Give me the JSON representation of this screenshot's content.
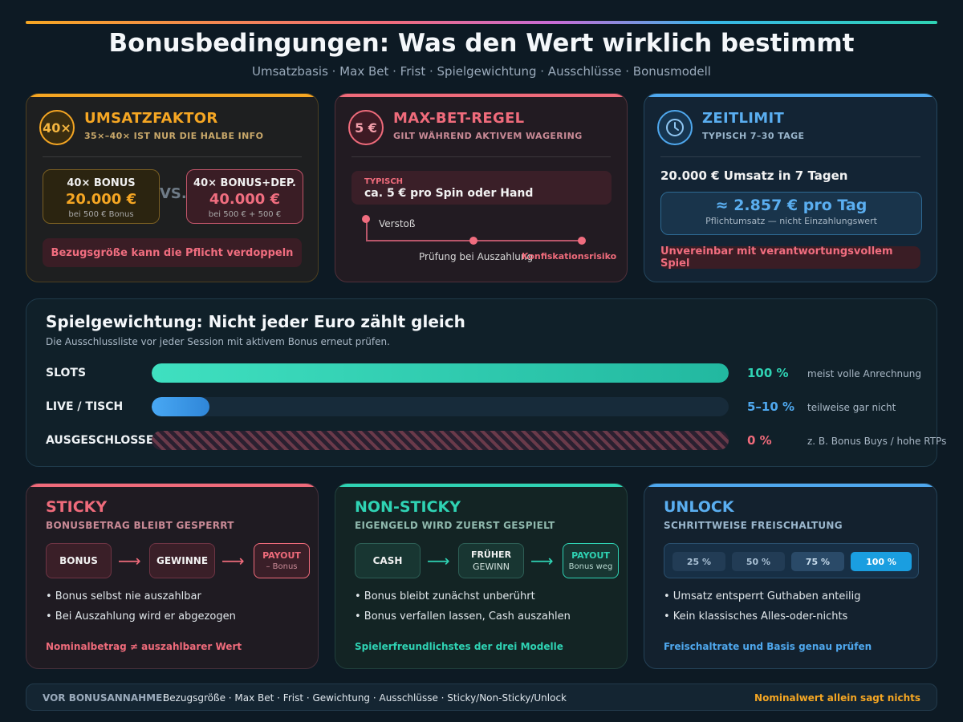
{
  "header": {
    "title": "Bonusbedingungen: Was den Wert wirklich bestimmt",
    "subtitle": "Umsatzbasis · Max Bet · Frist · Spielgewichtung · Ausschlüsse · Bonusmodell"
  },
  "colors": {
    "orange": "#f5a623",
    "red": "#ef6b7b",
    "blue": "#4fa8ee",
    "teal": "#2fd3b4"
  },
  "umsatz": {
    "badge": "40×",
    "title": "UMSATZFAKTOR",
    "subtitle": "35×–40× IST NUR DIE HALBE INFO",
    "box1": {
      "label": "40× BONUS",
      "amount": "20.000 €",
      "note": "bei 500 € Bonus"
    },
    "vs": "VS.",
    "box2": {
      "label": "40× BONUS+DEP.",
      "amount": "40.000 €",
      "note": "bei 500 € + 500 €"
    },
    "warning": "Bezugsgröße kann die Pflicht verdoppeln"
  },
  "maxbet": {
    "badge": "5 €",
    "title": "MAX-BET-REGEL",
    "subtitle": "GILT WÄHREND AKTIVEM WAGERING",
    "typisch_label": "TYPISCH",
    "typisch_value": "ca. 5 € pro Spin oder Hand",
    "timeline": {
      "step1": "Verstoß",
      "step2": "Prüfung bei Auszahlung",
      "step3": "Konfiskationsrisiko"
    }
  },
  "zeitlimit": {
    "icon": "clock-icon",
    "title": "ZEITLIMIT",
    "subtitle": "TYPISCH 7–30 TAGE",
    "statement": "20.000 € Umsatz in 7 Tagen",
    "per_day": "≈ 2.857 € pro Tag",
    "per_day_note": "Pflichtumsatz — nicht Einzahlungswert",
    "warning": "Unvereinbar mit verantwortungsvollem Spiel"
  },
  "weights": {
    "title": "Spielgewichtung: Nicht jeder Euro zählt gleich",
    "subtitle": "Die Ausschlussliste vor jeder Session mit aktivem Bonus erneut prüfen.",
    "rows": [
      {
        "label": "SLOTS",
        "percent": "100 %",
        "fill": 1.0,
        "note": "meist volle Anrechnung"
      },
      {
        "label": "LIVE / TISCH",
        "percent": "5–10 %",
        "fill": 0.1,
        "note": "teilweise gar nicht"
      },
      {
        "label": "AUSGESCHLOSSEN",
        "percent": "0 %",
        "fill": 0,
        "note": "z. B. Bonus Buys / hohe RTPs"
      }
    ]
  },
  "sticky": {
    "title": "STICKY",
    "subtitle": "BONUSBETRAG BLEIBT GESPERRT",
    "flow": [
      "BONUS",
      "GEWINNE",
      "PAYOUT",
      "– Bonus"
    ],
    "bullets": [
      "• Bonus selbst nie auszahlbar",
      "• Bei Auszahlung wird er abgezogen"
    ],
    "footer": "Nominalbetrag ≠ auszahlbarer Wert"
  },
  "nonsticky": {
    "title": "NON-STICKY",
    "subtitle": "EIGENGELD WIRD ZUERST GESPIELT",
    "flow": [
      "CASH",
      "FRÜHER",
      "GEWINN",
      "PAYOUT",
      "Bonus weg"
    ],
    "bullets": [
      "• Bonus bleibt zunächst unberührt",
      "• Bonus verfallen lassen, Cash auszahlen"
    ],
    "footer": "Spielerfreundlichstes der drei Modelle"
  },
  "unlock": {
    "title": "UNLOCK",
    "subtitle": "SCHRITTWEISE FREISCHALTUNG",
    "steps": [
      "25 %",
      "50 %",
      "75 %",
      "100 %"
    ],
    "bullets": [
      "• Umsatz entsperrt Guthaben anteilig",
      "• Kein klassisches Alles-oder-nichts"
    ],
    "footer": "Freischaltrate und Basis genau prüfen"
  },
  "footer": {
    "label": "VOR BONUSANNAHME:",
    "text": "Bezugsgröße · Max Bet · Frist · Gewichtung · Ausschlüsse · Sticky/Non-Sticky/Unlock",
    "right": "Nominalwert allein sagt nichts"
  }
}
